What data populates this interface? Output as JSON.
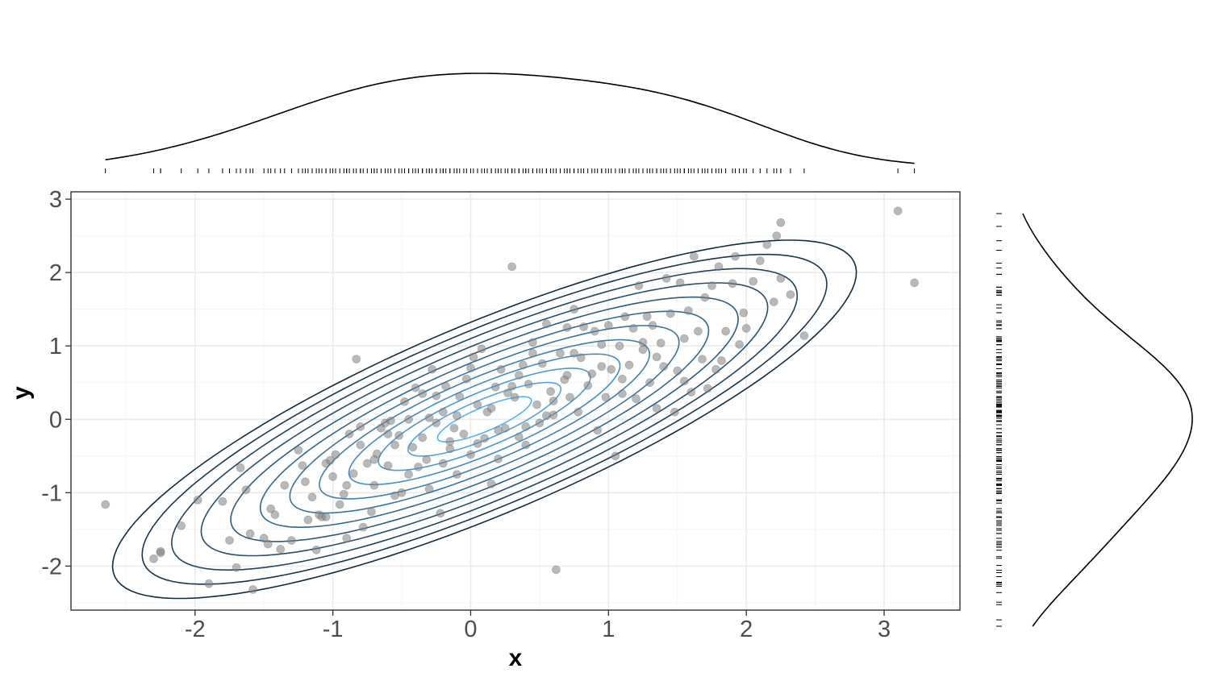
{
  "chart_data": {
    "type": "scatter",
    "title": "",
    "xlabel": "x",
    "ylabel": "y",
    "xlim": [
      -2.9,
      3.55
    ],
    "ylim": [
      -2.6,
      3.1
    ],
    "x_ticks": [
      -2,
      -1,
      0,
      1,
      2,
      3
    ],
    "y_ticks": [
      -2,
      -1,
      0,
      1,
      2,
      3
    ],
    "x_tick_labels": [
      "-2",
      "-1",
      "0",
      "1",
      "2",
      "3"
    ],
    "y_tick_labels": [
      "-2",
      "-1",
      "0",
      "1",
      "2",
      "3"
    ],
    "grid": true,
    "legend": "none",
    "marginals": {
      "top": "density curve of x with rug",
      "right": "density curve of y with rug"
    },
    "density_contours": {
      "center": [
        0.1,
        0.0
      ],
      "levels": 12,
      "color_low": "#132b43",
      "color_high": "#56b1f7"
    },
    "point_color": "#808080",
    "points": [
      [
        -2.65,
        -1.16
      ],
      [
        -2.3,
        -1.9
      ],
      [
        -2.25,
        -1.8
      ],
      [
        -2.25,
        -1.82
      ],
      [
        -2.1,
        -1.45
      ],
      [
        -1.98,
        -1.1
      ],
      [
        -1.9,
        -2.24
      ],
      [
        -1.8,
        -1.12
      ],
      [
        -1.75,
        -1.65
      ],
      [
        -1.7,
        -2.02
      ],
      [
        -1.67,
        -0.66
      ],
      [
        -1.63,
        -0.96
      ],
      [
        -1.6,
        -1.56
      ],
      [
        -1.58,
        -2.32
      ],
      [
        -1.5,
        -1.62
      ],
      [
        -1.47,
        -1.7
      ],
      [
        -1.45,
        -1.22
      ],
      [
        -1.42,
        -1.3
      ],
      [
        -1.38,
        -1.77
      ],
      [
        -1.35,
        -0.9
      ],
      [
        -1.3,
        -1.65
      ],
      [
        -1.25,
        -0.42
      ],
      [
        -1.22,
        -0.63
      ],
      [
        -1.18,
        -1.37
      ],
      [
        -1.15,
        -1.06
      ],
      [
        -1.12,
        -1.78
      ],
      [
        -1.1,
        -1.3
      ],
      [
        -1.08,
        -1.33
      ],
      [
        -1.05,
        -1.33
      ],
      [
        -1.02,
        -0.56
      ],
      [
        -1.0,
        -0.78
      ],
      [
        -0.98,
        -0.48
      ],
      [
        -0.95,
        -1.16
      ],
      [
        -0.92,
        -1.02
      ],
      [
        -0.9,
        -1.62
      ],
      [
        -0.88,
        -0.2
      ],
      [
        -0.85,
        -0.74
      ],
      [
        -0.83,
        0.82
      ],
      [
        -0.8,
        -0.35
      ],
      [
        -0.78,
        -1.47
      ],
      [
        -0.75,
        -0.6
      ],
      [
        -0.72,
        -1.26
      ],
      [
        -0.7,
        -0.9
      ],
      [
        -0.68,
        -0.47
      ],
      [
        -0.65,
        -0.12
      ],
      [
        -0.62,
        -0.05
      ],
      [
        -0.6,
        -0.63
      ],
      [
        -0.58,
        -0.02
      ],
      [
        -0.55,
        -1.04
      ],
      [
        -0.52,
        -0.22
      ],
      [
        -0.5,
        -1.0
      ],
      [
        -0.48,
        0.24
      ],
      [
        -0.45,
        0.0
      ],
      [
        -0.42,
        -0.38
      ],
      [
        -0.4,
        0.43
      ],
      [
        -0.38,
        -0.65
      ],
      [
        -0.35,
        -0.25
      ],
      [
        -0.32,
        -0.55
      ],
      [
        -0.3,
        0.02
      ],
      [
        -0.28,
        0.68
      ],
      [
        -0.25,
        0.32
      ],
      [
        -0.22,
        -1.28
      ],
      [
        -0.2,
        0.1
      ],
      [
        -0.18,
        0.45
      ],
      [
        -0.15,
        -0.4
      ],
      [
        -0.12,
        -0.12
      ],
      [
        -0.1,
        -0.75
      ],
      [
        -0.08,
        0.31
      ],
      [
        -0.05,
        -0.2
      ],
      [
        -0.03,
        0.55
      ],
      [
        0.0,
        -0.48
      ],
      [
        0.02,
        0.85
      ],
      [
        0.05,
        -0.33
      ],
      [
        0.08,
        0.96
      ],
      [
        0.1,
        -0.26
      ],
      [
        0.12,
        0.1
      ],
      [
        0.15,
        -0.88
      ],
      [
        0.18,
        0.44
      ],
      [
        0.2,
        -0.54
      ],
      [
        0.22,
        0.68
      ],
      [
        0.25,
        -0.12
      ],
      [
        0.27,
        0.36
      ],
      [
        0.3,
        2.08
      ],
      [
        0.32,
        0.3
      ],
      [
        0.35,
        -0.24
      ],
      [
        0.38,
        0.74
      ],
      [
        0.4,
        -0.1
      ],
      [
        0.42,
        0.48
      ],
      [
        0.45,
        1.05
      ],
      [
        0.48,
        0.2
      ],
      [
        0.5,
        -0.05
      ],
      [
        0.52,
        0.76
      ],
      [
        0.55,
        1.3
      ],
      [
        0.58,
        0.38
      ],
      [
        0.6,
        0.06
      ],
      [
        0.62,
        -2.05
      ],
      [
        0.65,
        0.9
      ],
      [
        0.68,
        0.54
      ],
      [
        0.7,
        1.25
      ],
      [
        0.72,
        0.3
      ],
      [
        0.75,
        1.5
      ],
      [
        0.78,
        0.1
      ],
      [
        0.8,
        0.84
      ],
      [
        0.82,
        1.26
      ],
      [
        0.85,
        0.46
      ],
      [
        0.88,
        0.62
      ],
      [
        0.9,
        1.2
      ],
      [
        0.92,
        -0.15
      ],
      [
        0.95,
        1.02
      ],
      [
        0.98,
        0.3
      ],
      [
        1.0,
        1.28
      ],
      [
        1.02,
        0.68
      ],
      [
        1.05,
        -0.5
      ],
      [
        1.08,
        1.0
      ],
      [
        1.1,
        0.35
      ],
      [
        1.12,
        1.4
      ],
      [
        1.15,
        0.74
      ],
      [
        1.18,
        1.24
      ],
      [
        1.2,
        0.28
      ],
      [
        1.22,
        1.82
      ],
      [
        1.25,
        0.95
      ],
      [
        1.28,
        1.4
      ],
      [
        1.3,
        0.5
      ],
      [
        1.32,
        1.28
      ],
      [
        1.35,
        0.15
      ],
      [
        1.38,
        1.04
      ],
      [
        1.4,
        0.72
      ],
      [
        1.42,
        1.92
      ],
      [
        1.45,
        1.44
      ],
      [
        1.48,
        0.1
      ],
      [
        1.5,
        0.66
      ],
      [
        1.52,
        1.86
      ],
      [
        1.55,
        0.52
      ],
      [
        1.58,
        1.48
      ],
      [
        1.6,
        0.37
      ],
      [
        1.62,
        2.22
      ],
      [
        1.65,
        1.2
      ],
      [
        1.68,
        0.82
      ],
      [
        1.7,
        1.66
      ],
      [
        1.72,
        0.42
      ],
      [
        1.75,
        1.82
      ],
      [
        1.78,
        0.68
      ],
      [
        1.8,
        2.08
      ],
      [
        1.82,
        0.8
      ],
      [
        1.85,
        1.2
      ],
      [
        1.9,
        1.85
      ],
      [
        1.92,
        2.22
      ],
      [
        1.95,
        1.02
      ],
      [
        1.98,
        1.45
      ],
      [
        2.0,
        1.24
      ],
      [
        2.05,
        1.88
      ],
      [
        2.1,
        2.16
      ],
      [
        2.15,
        2.38
      ],
      [
        2.2,
        1.6
      ],
      [
        2.22,
        2.5
      ],
      [
        2.25,
        1.92
      ],
      [
        2.25,
        2.68
      ],
      [
        2.32,
        1.7
      ],
      [
        2.42,
        1.14
      ],
      [
        3.1,
        2.84
      ],
      [
        3.22,
        1.86
      ],
      [
        -0.3,
        -0.95
      ],
      [
        0.15,
        0.15
      ],
      [
        -0.1,
        0.05
      ],
      [
        0.35,
        0.6
      ],
      [
        -0.55,
        -0.35
      ],
      [
        0.6,
        0.25
      ],
      [
        -0.2,
        -0.6
      ],
      [
        0.95,
        0.72
      ],
      [
        -0.7,
        -0.55
      ],
      [
        0.4,
        -0.35
      ],
      [
        1.1,
        0.55
      ],
      [
        -0.9,
        -0.9
      ],
      [
        0.2,
        -0.15
      ],
      [
        -0.45,
        -0.75
      ],
      [
        0.75,
        0.9
      ],
      [
        1.25,
        1.05
      ],
      [
        -1.2,
        -0.85
      ],
      [
        0.55,
        0.05
      ],
      [
        -0.35,
        0.35
      ],
      [
        0.05,
        0.2
      ],
      [
        -0.15,
        -0.3
      ],
      [
        0.7,
        0.6
      ],
      [
        -0.6,
        -0.2
      ],
      [
        0.3,
        0.45
      ],
      [
        1.55,
        1.1
      ],
      [
        -0.8,
        -0.1
      ],
      [
        0.0,
        0.7
      ],
      [
        0.45,
        0.9
      ],
      [
        -0.25,
        -0.05
      ],
      [
        1.35,
        0.85
      ],
      [
        -1.05,
        -0.6
      ]
    ]
  },
  "colors": {
    "panel_bg": "#ebebeb",
    "panel_border": "#333333",
    "grid": "#ebebeb"
  }
}
